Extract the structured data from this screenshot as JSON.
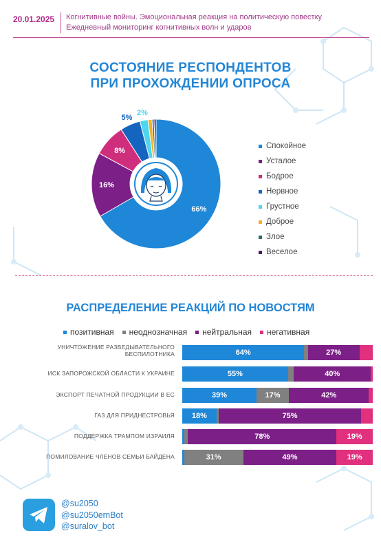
{
  "header": {
    "date": "20.01.2025",
    "line1": "Когнитивные войны. Эмоциональная реакция на политическую повестку",
    "line2": "Ежедневный мониторинг когнитивных волн и ударов"
  },
  "section1": {
    "title_line1": "СОСТОЯНИЕ РЕСПОНДЕНТОВ",
    "title_line2": "ПРИ ПРОХОЖДЕНИИ ОПРОСА"
  },
  "section2": {
    "title": "РАСПРЕДЕЛЕНИЕ РЕАКЦИЙ ПО НОВОСТЯМ"
  },
  "chart_data": [
    {
      "type": "pie",
      "variant": "donut",
      "title": "СОСТОЯНИЕ РЕСПОНДЕНТОВ ПРИ ПРОХОЖДЕНИИ ОПРОСА",
      "legend_position": "right",
      "categories": [
        "Спокойное",
        "Усталое",
        "Бодрое",
        "Нервное",
        "Грустное",
        "Доброе",
        "Злое",
        "Веселое"
      ],
      "values": [
        66,
        16,
        8,
        5,
        2,
        1,
        0.5,
        0.5
      ],
      "labels": [
        "66%",
        "16%",
        "8%",
        "5%",
        "2%",
        "",
        "",
        ""
      ],
      "colors": [
        "#1f87d8",
        "#7c1f87",
        "#cf2e7d",
        "#1565c0",
        "#4dd6ee",
        "#f0b12a",
        "#2a6f6f",
        "#4b1a5f"
      ],
      "center_icon": "woman-face-icon"
    },
    {
      "type": "bar",
      "orientation": "horizontal",
      "stacked": true,
      "title": "РАСПРЕДЕЛЕНИЕ РЕАКЦИЙ ПО НОВОСТЯМ",
      "legend_position": "top",
      "categories": [
        "УНИЧТОЖЕНИЕ РАЗВЕДЫВАТЕЛЬНОГО БЕСПИЛОТНИКА",
        "ИСК ЗАПОРОЖСКОЙ ОБЛАСТИ К УКРАИНЕ",
        "ЭКСПОРТ ПЕЧАТНОЙ ПРОДУКЦИИ В ЕС",
        "ГАЗ ДЛЯ ПРИДНЕСТРОВЬЯ",
        "ПОДДЕРЖКА ТРАМПОМ ИЗРАИЛЯ",
        "ПОМИЛОВАНИЕ ЧЛЕНОВ СЕМЬИ БАЙДЕНА"
      ],
      "series": [
        {
          "name": "позитивная",
          "color": "#1f87d8",
          "values": [
            64,
            55,
            39,
            18,
            1,
            1
          ],
          "labels": [
            "64%",
            "55%",
            "39%",
            "18%",
            "",
            ""
          ]
        },
        {
          "name": "неоднозначная",
          "color": "#808080",
          "values": [
            2,
            3,
            17,
            1,
            2,
            31
          ],
          "labels": [
            "",
            "",
            "17%",
            "",
            "",
            "31%"
          ]
        },
        {
          "name": "нейтральная",
          "color": "#7c1f87",
          "values": [
            27,
            40,
            42,
            75,
            78,
            49
          ],
          "labels": [
            "27%",
            "40%",
            "42%",
            "75%",
            "78%",
            "49%"
          ]
        },
        {
          "name": "негативная",
          "color": "#e0307e",
          "values": [
            7,
            1,
            2,
            6,
            19,
            19
          ],
          "labels": [
            "",
            "",
            "",
            "",
            "19%",
            "19%"
          ]
        }
      ]
    }
  ],
  "footer": {
    "telegram_icon": "telegram-icon",
    "handles": [
      "@su2050",
      "@su2050emBot",
      "@suralov_bot"
    ]
  }
}
